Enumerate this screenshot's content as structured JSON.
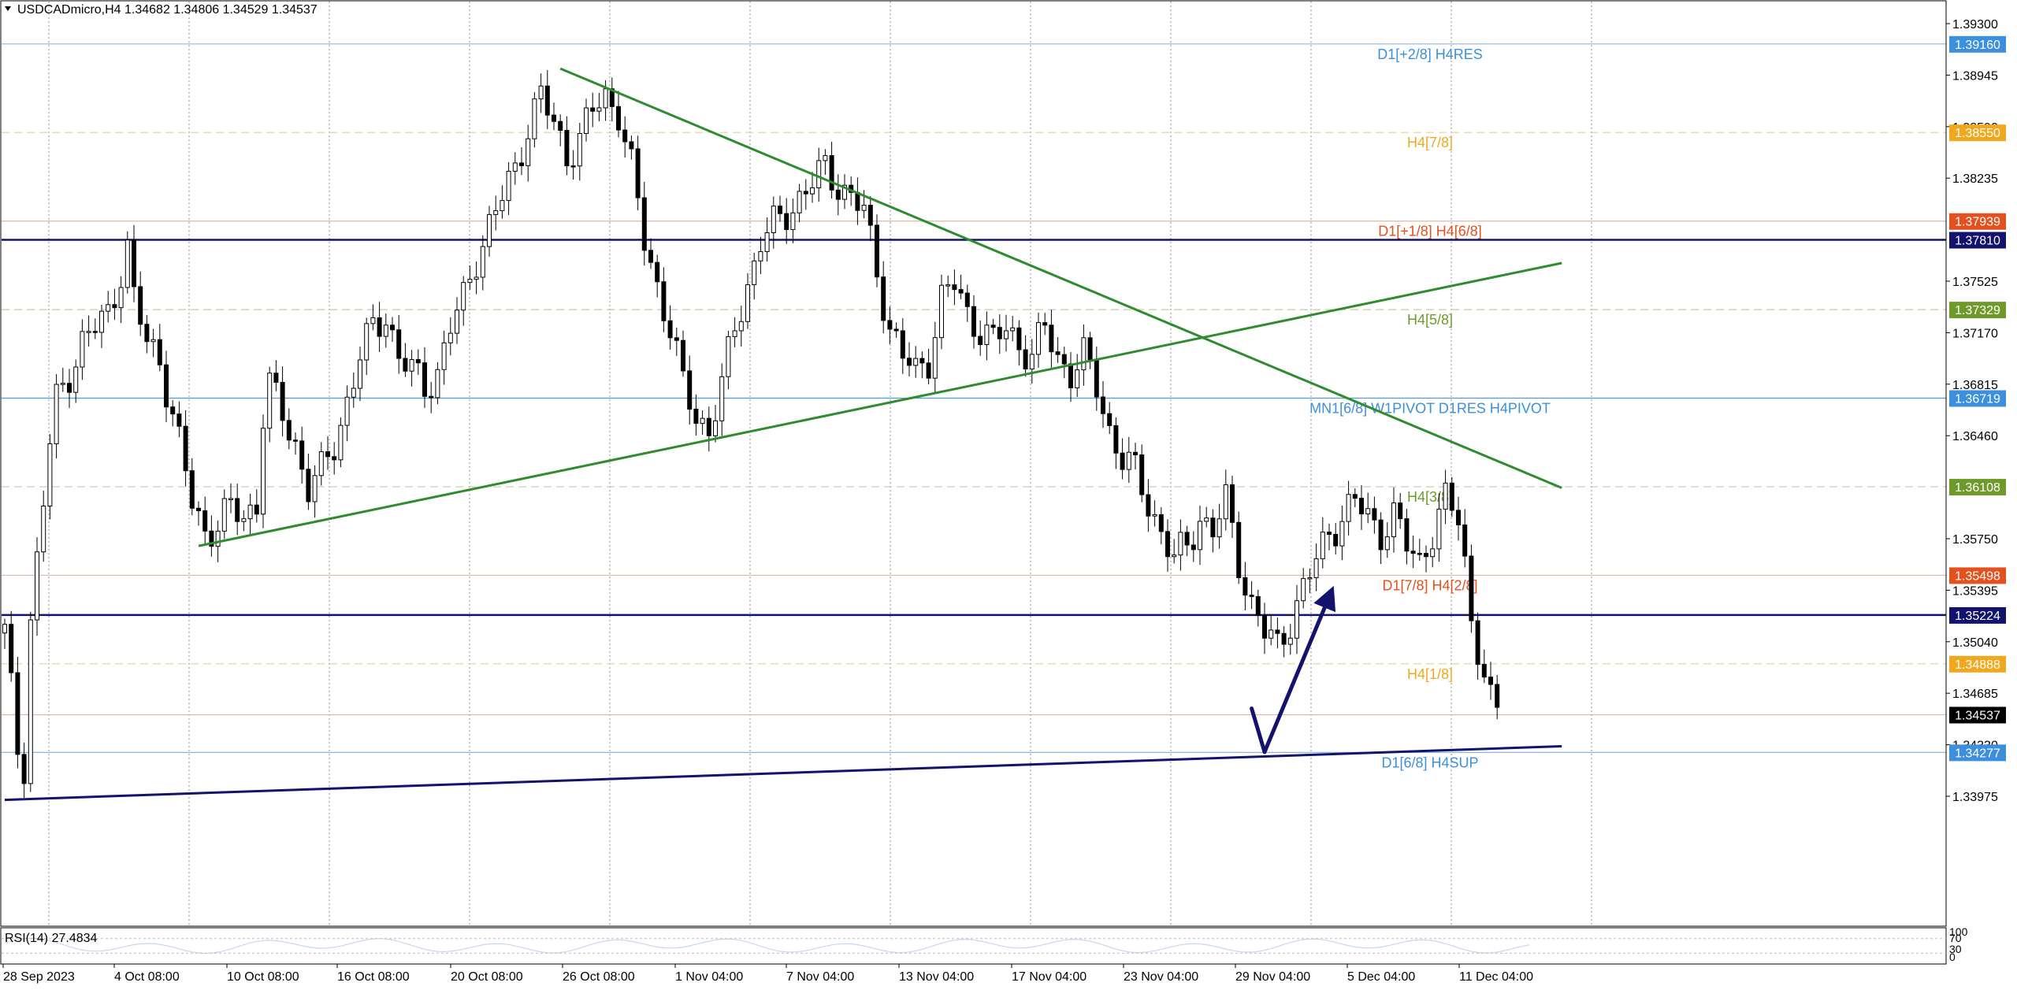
{
  "window": {
    "symbol_header": "USDCADmicro,H4  1.34682 1.34806 1.34529 1.34537",
    "rsi_label": "RSI(14) 27.4834",
    "rsi_scale": [
      "100",
      "70",
      "30",
      "0"
    ]
  },
  "chart_data": {
    "type": "candlestick",
    "symbol": "USDCADmicro",
    "timeframe": "H4",
    "ohlc_last": {
      "open": 1.34682,
      "high": 1.34806,
      "low": 1.34529,
      "close": 1.34537
    },
    "ylim": [
      1.338,
      1.394
    ],
    "y_ticks": [
      "1.39300",
      "1.38945",
      "1.38590",
      "1.38235",
      "1.37525",
      "1.37170",
      "1.36815",
      "1.36460",
      "1.35750",
      "1.35395",
      "1.35040",
      "1.34685",
      "1.34330",
      "1.33975"
    ],
    "x_ticks": [
      "28 Sep 2023",
      "4 Oct 08:00",
      "10 Oct 08:00",
      "16 Oct 08:00",
      "20 Oct 08:00",
      "26 Oct 08:00",
      "1 Nov 04:00",
      "7 Nov 04:00",
      "13 Nov 04:00",
      "17 Nov 04:00",
      "23 Nov 04:00",
      "29 Nov 04:00",
      "5 Dec 04:00",
      "11 Dec 04:00"
    ],
    "path_keypoints": [
      [
        0,
        1.351
      ],
      [
        1,
        1.347
      ],
      [
        2,
        1.343
      ],
      [
        3,
        1.342
      ],
      [
        4,
        1.352
      ],
      [
        5,
        1.356
      ],
      [
        6,
        1.36
      ],
      [
        7,
        1.364
      ],
      [
        8,
        1.367
      ],
      [
        10,
        1.369
      ],
      [
        12,
        1.371
      ],
      [
        14,
        1.372
      ],
      [
        16,
        1.373
      ],
      [
        18,
        1.376
      ],
      [
        19,
        1.3775
      ],
      [
        20,
        1.374
      ],
      [
        22,
        1.371
      ],
      [
        24,
        1.37
      ],
      [
        25,
        1.368
      ],
      [
        27,
        1.364
      ],
      [
        29,
        1.36
      ],
      [
        31,
        1.358
      ],
      [
        33,
        1.3585
      ],
      [
        35,
        1.3595
      ],
      [
        37,
        1.359
      ],
      [
        39,
        1.36
      ],
      [
        40,
        1.366
      ],
      [
        41,
        1.368
      ],
      [
        43,
        1.366
      ],
      [
        45,
        1.364
      ],
      [
        47,
        1.361
      ],
      [
        49,
        1.362
      ],
      [
        51,
        1.364
      ],
      [
        53,
        1.367
      ],
      [
        55,
        1.37
      ],
      [
        57,
        1.372
      ],
      [
        59,
        1.373
      ],
      [
        61,
        1.37
      ],
      [
        63,
        1.369
      ],
      [
        65,
        1.368
      ],
      [
        67,
        1.369
      ],
      [
        69,
        1.372
      ],
      [
        71,
        1.374
      ],
      [
        73,
        1.377
      ],
      [
        75,
        1.379
      ],
      [
        77,
        1.381
      ],
      [
        79,
        1.383
      ],
      [
        81,
        1.386
      ],
      [
        83,
        1.388
      ],
      [
        85,
        1.386
      ],
      [
        87,
        1.384
      ],
      [
        89,
        1.385
      ],
      [
        91,
        1.387
      ],
      [
        93,
        1.388
      ],
      [
        95,
        1.387
      ],
      [
        97,
        1.383
      ],
      [
        99,
        1.378
      ],
      [
        101,
        1.375
      ],
      [
        103,
        1.372
      ],
      [
        105,
        1.368
      ],
      [
        107,
        1.366
      ],
      [
        109,
        1.365
      ],
      [
        111,
        1.368
      ],
      [
        113,
        1.372
      ],
      [
        115,
        1.375
      ],
      [
        117,
        1.378
      ],
      [
        119,
        1.379
      ],
      [
        121,
        1.38
      ],
      [
        123,
        1.381
      ],
      [
        125,
        1.382
      ],
      [
        127,
        1.383
      ],
      [
        129,
        1.382
      ],
      [
        131,
        1.381
      ],
      [
        133,
        1.38
      ],
      [
        135,
        1.376
      ],
      [
        137,
        1.372
      ],
      [
        139,
        1.37
      ],
      [
        141,
        1.369
      ],
      [
        143,
        1.37
      ],
      [
        145,
        1.374
      ],
      [
        147,
        1.375
      ],
      [
        149,
        1.373
      ],
      [
        151,
        1.372
      ],
      [
        153,
        1.371
      ],
      [
        155,
        1.372
      ],
      [
        157,
        1.371
      ],
      [
        159,
        1.37
      ],
      [
        161,
        1.372
      ],
      [
        163,
        1.37
      ],
      [
        165,
        1.369
      ],
      [
        167,
        1.37
      ],
      [
        169,
        1.368
      ],
      [
        171,
        1.365
      ],
      [
        173,
        1.363
      ],
      [
        175,
        1.362
      ],
      [
        177,
        1.36
      ],
      [
        179,
        1.358
      ],
      [
        181,
        1.356
      ],
      [
        183,
        1.357
      ],
      [
        185,
        1.359
      ],
      [
        187,
        1.358
      ],
      [
        189,
        1.36
      ],
      [
        191,
        1.356
      ],
      [
        193,
        1.353
      ],
      [
        195,
        1.351
      ],
      [
        197,
        1.35
      ],
      [
        199,
        1.352
      ],
      [
        201,
        1.354
      ],
      [
        203,
        1.356
      ],
      [
        205,
        1.358
      ],
      [
        207,
        1.359
      ],
      [
        209,
        1.36
      ],
      [
        211,
        1.359
      ],
      [
        213,
        1.358
      ],
      [
        215,
        1.359
      ],
      [
        217,
        1.357
      ],
      [
        219,
        1.356
      ],
      [
        221,
        1.358
      ],
      [
        223,
        1.36
      ],
      [
        225,
        1.359
      ],
      [
        226,
        1.356
      ],
      [
        227,
        1.352
      ],
      [
        228,
        1.35
      ],
      [
        229,
        1.348
      ],
      [
        230,
        1.346
      ],
      [
        231,
        1.34537
      ]
    ],
    "levels": [
      {
        "price": 1.3916,
        "label": "D1[+2/8] H4RES",
        "tag": "1.39160",
        "color": "#8fb7db",
        "tag_color": "#3c8fdd",
        "style": "solid"
      },
      {
        "price": 1.3855,
        "label": "H4[7/8]",
        "tag": "1.38550",
        "color": "#e3d38a",
        "tag_color": "#f0a81e",
        "style": "dashed"
      },
      {
        "price": 1.37939,
        "label": "D1[+1/8] H4[6/8]",
        "tag": "1.37939",
        "color": "#e2b6a6",
        "tag_color": "#e2511e",
        "style": "solid"
      },
      {
        "price": 1.3781,
        "label": "",
        "tag": "1.37810",
        "color": "#13136e",
        "tag_color": "#13136e",
        "style": "thick"
      },
      {
        "price": 1.37329,
        "label": "H4[5/8]",
        "tag": "1.37329",
        "color": "#c8c9a0",
        "tag_color": "#6f9a2b",
        "style": "dashed"
      },
      {
        "price": 1.36719,
        "label": "MN1[6/8] W1PIVOT D1RES H4PIVOT",
        "tag": "1.36719",
        "color": "#4a9be0",
        "tag_color": "#3c8fdd",
        "style": "solid"
      },
      {
        "price": 1.36108,
        "label": "H4[3/8]",
        "tag": "1.36108",
        "color": "#c8c9a0",
        "tag_color": "#6f9a2b",
        "style": "dashed"
      },
      {
        "price": 1.35498,
        "label": "D1[7/8] H4[2/8]",
        "tag": "1.35498",
        "color": "#e2b6a6",
        "tag_color": "#e2511e",
        "style": "solid"
      },
      {
        "price": 1.35224,
        "label": "",
        "tag": "1.35224",
        "color": "#13136e",
        "tag_color": "#13136e",
        "style": "thick"
      },
      {
        "price": 1.34888,
        "label": "H4[1/8]",
        "tag": "1.34888",
        "color": "#e3d38a",
        "tag_color": "#f0a81e",
        "style": "dashed"
      },
      {
        "price": 1.34537,
        "label": "",
        "tag": "1.34537",
        "color": "#e2b6a6",
        "tag_color": "#000000",
        "style": "solid"
      },
      {
        "price": 1.34277,
        "label": "D1[6/8] H4SUP",
        "tag": "1.34277",
        "color": "#8fb7db",
        "tag_color": "#3c8fdd",
        "style": "solid"
      }
    ],
    "trendlines": [
      {
        "color": "#2e8b2e",
        "from": [
          86,
          1.3899
        ],
        "to": [
          241,
          1.361
        ]
      },
      {
        "color": "#2e8b2e",
        "from": [
          30,
          1.357
        ],
        "to": [
          241,
          1.3765
        ]
      },
      {
        "color": "#13136e",
        "from": [
          0,
          1.3395
        ],
        "to": [
          241,
          1.3432
        ]
      }
    ],
    "forecast_arrows": [
      {
        "color": "#13136e",
        "from": [
          193,
          1.3458
        ],
        "to": [
          195,
          1.3428
        ]
      },
      {
        "color": "#13136e",
        "from": [
          195,
          1.3428
        ],
        "to": [
          205,
          1.3535
        ]
      }
    ],
    "rsi": {
      "value": 27.4834,
      "range": [
        0,
        100
      ]
    },
    "colors": {
      "bull": "#ffffff",
      "bear": "#000000",
      "wick": "#000000",
      "grid": "#8c8c8c"
    }
  }
}
